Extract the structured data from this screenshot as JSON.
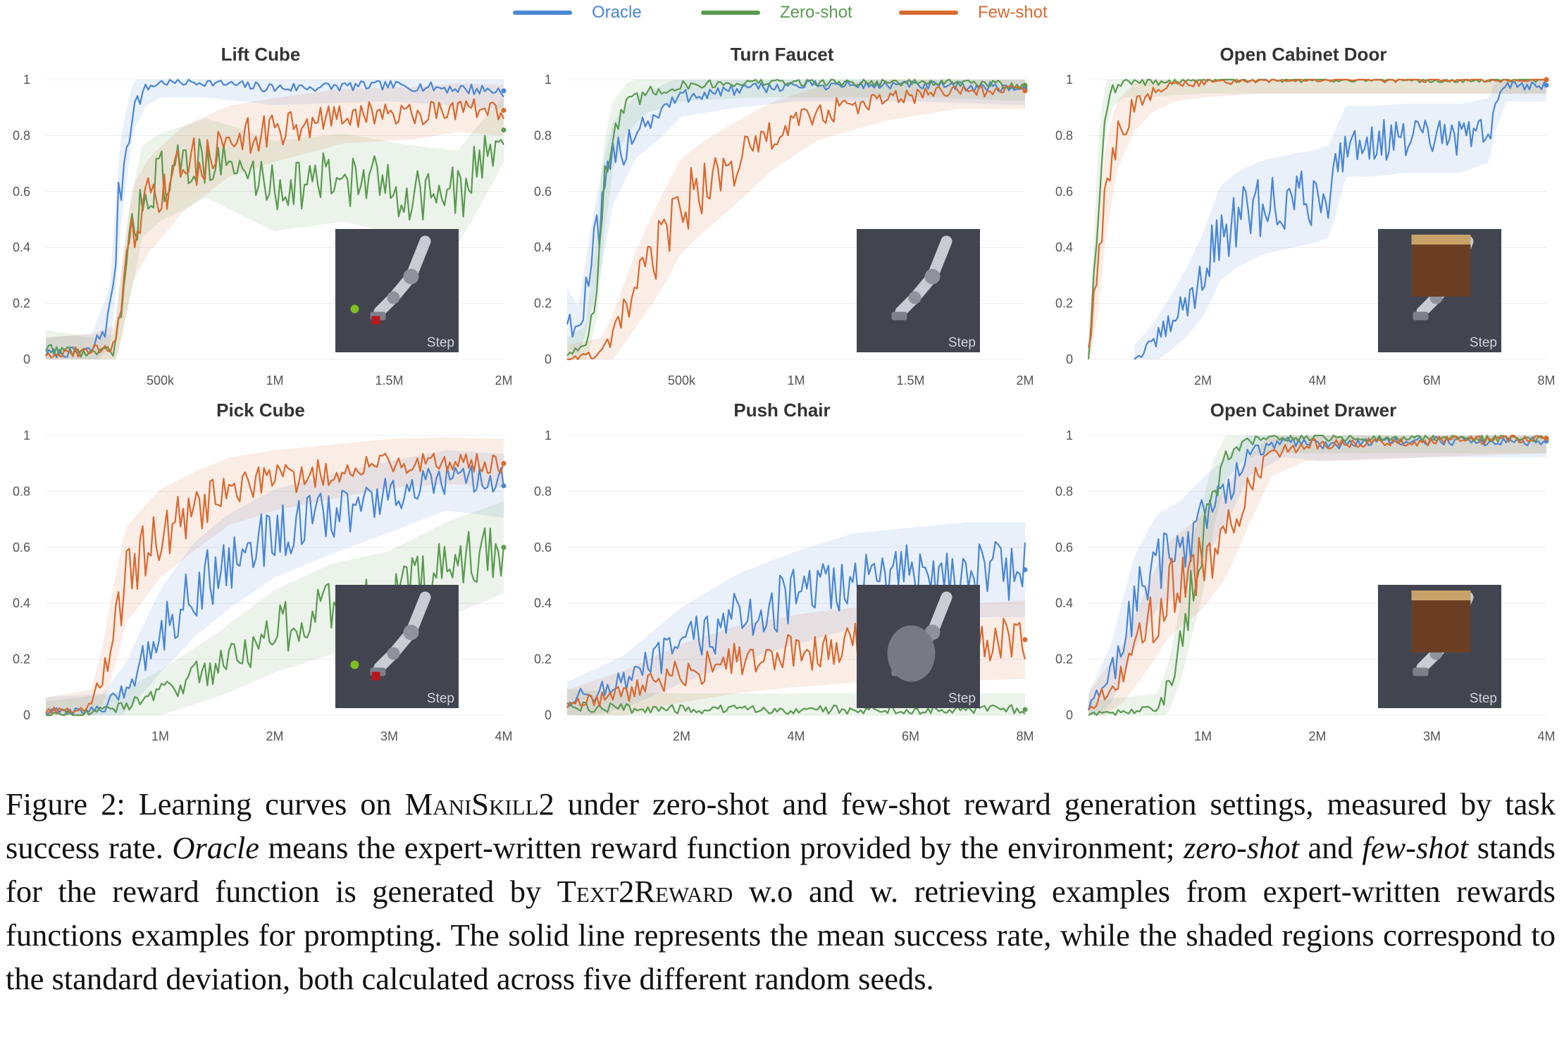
{
  "legend": [
    {
      "key": "oracle",
      "label": "Oracle",
      "color": "#4a86d4"
    },
    {
      "key": "zero",
      "label": "Zero-shot",
      "color": "#5a9a50"
    },
    {
      "key": "few",
      "label": "Few-shot",
      "color": "#d9692f"
    }
  ],
  "chart_data": [
    {
      "type": "line",
      "title": "Lift Cube",
      "xlim": [
        0,
        2000000
      ],
      "ylim": [
        0,
        1
      ],
      "x_ticks": [
        500000,
        1000000,
        1500000,
        2000000
      ],
      "x_tick_labels": [
        "500k",
        "1M",
        "1.5M",
        "2M"
      ],
      "y_ticks": [
        0,
        0.2,
        0.4,
        0.6,
        0.8,
        1
      ],
      "y_tick_labels": [
        "0",
        "0.2",
        "0.4",
        "0.6",
        "0.8",
        "1"
      ],
      "step_label": "Step",
      "series": [
        {
          "name": "Oracle",
          "x": [
            0,
            200000,
            280000,
            330000,
            380000,
            440000,
            500000,
            700000,
            1000000,
            1500000,
            2000000
          ],
          "y": [
            0.02,
            0.03,
            0.15,
            0.65,
            0.9,
            0.97,
            0.99,
            0.99,
            0.97,
            0.98,
            0.96
          ]
        },
        {
          "name": "Zero-shot",
          "x": [
            0,
            200000,
            300000,
            360000,
            420000,
            500000,
            700000,
            1000000,
            1300000,
            1600000,
            1800000,
            2000000
          ],
          "y": [
            0.04,
            0.02,
            0.03,
            0.35,
            0.6,
            0.65,
            0.72,
            0.62,
            0.65,
            0.6,
            0.58,
            0.82
          ]
        },
        {
          "name": "Few-shot",
          "x": [
            0,
            200000,
            300000,
            380000,
            450000,
            600000,
            800000,
            1000000,
            1300000,
            1600000,
            1800000,
            2000000
          ],
          "y": [
            0.02,
            0.03,
            0.05,
            0.45,
            0.55,
            0.68,
            0.78,
            0.82,
            0.87,
            0.88,
            0.9,
            0.89
          ]
        }
      ]
    },
    {
      "type": "line",
      "title": "Turn Faucet",
      "xlim": [
        0,
        2000000
      ],
      "ylim": [
        0,
        1
      ],
      "x_ticks": [
        500000,
        1000000,
        1500000,
        2000000
      ],
      "x_tick_labels": [
        "500k",
        "1M",
        "1.5M",
        "2M"
      ],
      "y_ticks": [
        0,
        0.2,
        0.4,
        0.6,
        0.8,
        1
      ],
      "y_tick_labels": [
        "0",
        "0.2",
        "0.4",
        "0.6",
        "0.8",
        "1"
      ],
      "step_label": "Step",
      "series": [
        {
          "name": "Oracle",
          "x": [
            0,
            50000,
            150000,
            200000,
            300000,
            400000,
            500000,
            700000,
            1000000,
            1500000,
            2000000
          ],
          "y": [
            0.15,
            0.1,
            0.5,
            0.7,
            0.83,
            0.88,
            0.94,
            0.96,
            0.98,
            0.98,
            0.97
          ]
        },
        {
          "name": "Zero-shot",
          "x": [
            0,
            80000,
            130000,
            160000,
            200000,
            260000,
            350000,
            500000,
            800000,
            1200000,
            1600000,
            2000000
          ],
          "y": [
            0.02,
            0.05,
            0.3,
            0.6,
            0.8,
            0.9,
            0.95,
            0.98,
            0.99,
            0.99,
            0.99,
            0.98
          ]
        },
        {
          "name": "Few-shot",
          "x": [
            0,
            150000,
            200000,
            300000,
            400000,
            500000,
            600000,
            700000,
            800000,
            900000,
            1100000,
            1400000,
            1700000,
            2000000
          ],
          "y": [
            0,
            0.02,
            0.08,
            0.25,
            0.4,
            0.55,
            0.62,
            0.68,
            0.74,
            0.8,
            0.88,
            0.93,
            0.96,
            0.96
          ]
        }
      ]
    },
    {
      "type": "line",
      "title": "Open Cabinet Door",
      "xlim": [
        0,
        8000000
      ],
      "ylim": [
        0,
        1
      ],
      "x_ticks": [
        2000000,
        4000000,
        6000000,
        8000000
      ],
      "x_tick_labels": [
        "2M",
        "4M",
        "6M",
        "8M"
      ],
      "y_ticks": [
        0,
        0.2,
        0.4,
        0.6,
        0.8,
        1
      ],
      "y_tick_labels": [
        "0",
        "0.2",
        "0.4",
        "0.6",
        "0.8",
        "1"
      ],
      "step_label": "Step",
      "series": [
        {
          "name": "Oracle",
          "x": [
            800000,
            1100000,
            1400000,
            1700000,
            2000000,
            2300000,
            2600000,
            3000000,
            3400000,
            3900000,
            4200000,
            4500000,
            5000000,
            5500000,
            6000000,
            6500000,
            7000000,
            7100000,
            7300000,
            8000000
          ],
          "y": [
            0,
            0.05,
            0.12,
            0.2,
            0.3,
            0.45,
            0.5,
            0.54,
            0.56,
            0.58,
            0.6,
            0.78,
            0.78,
            0.79,
            0.79,
            0.79,
            0.82,
            0.9,
            0.98,
            0.98
          ]
        },
        {
          "name": "Zero-shot",
          "x": [
            0,
            100000,
            200000,
            300000,
            400000,
            600000,
            1000000,
            2000000,
            4000000,
            6000000,
            8000000
          ],
          "y": [
            0,
            0.3,
            0.7,
            0.9,
            0.96,
            0.99,
            0.99,
            1,
            1,
            1,
            1
          ]
        },
        {
          "name": "Few-shot",
          "x": [
            0,
            100000,
            300000,
            500000,
            800000,
            1100000,
            1500000,
            2000000,
            3000000,
            4000000,
            6000000,
            8000000
          ],
          "y": [
            0.05,
            0.2,
            0.6,
            0.8,
            0.9,
            0.95,
            0.98,
            0.99,
            1,
            1,
            1,
            1
          ]
        }
      ]
    },
    {
      "type": "line",
      "title": "Pick Cube",
      "xlim": [
        0,
        4000000
      ],
      "ylim": [
        0,
        1
      ],
      "x_ticks": [
        1000000,
        2000000,
        3000000,
        4000000
      ],
      "x_tick_labels": [
        "1M",
        "2M",
        "3M",
        "4M"
      ],
      "y_ticks": [
        0,
        0.2,
        0.4,
        0.6,
        0.8,
        1
      ],
      "y_tick_labels": [
        "0",
        "0.2",
        "0.4",
        "0.6",
        "0.8",
        "1"
      ],
      "step_label": "Step",
      "series": [
        {
          "name": "Oracle",
          "x": [
            0,
            500000,
            700000,
            1000000,
            1300000,
            1600000,
            2000000,
            2500000,
            3000000,
            3500000,
            4000000
          ],
          "y": [
            0.01,
            0.02,
            0.1,
            0.3,
            0.45,
            0.55,
            0.65,
            0.72,
            0.78,
            0.84,
            0.82
          ]
        },
        {
          "name": "Zero-shot",
          "x": [
            0,
            600000,
            1000000,
            1500000,
            2000000,
            2500000,
            3000000,
            3500000,
            4000000
          ],
          "y": [
            0,
            0.02,
            0.08,
            0.18,
            0.3,
            0.38,
            0.42,
            0.52,
            0.6
          ]
        },
        {
          "name": "Few-shot",
          "x": [
            0,
            400000,
            500000,
            700000,
            1000000,
            1300000,
            1600000,
            2000000,
            2500000,
            3000000,
            3500000,
            4000000
          ],
          "y": [
            0.01,
            0.03,
            0.15,
            0.5,
            0.65,
            0.73,
            0.8,
            0.84,
            0.87,
            0.9,
            0.91,
            0.9
          ]
        }
      ]
    },
    {
      "type": "line",
      "title": "Push Chair",
      "xlim": [
        0,
        8000000
      ],
      "ylim": [
        0,
        1
      ],
      "x_ticks": [
        2000000,
        4000000,
        6000000,
        8000000
      ],
      "x_tick_labels": [
        "2M",
        "4M",
        "6M",
        "8M"
      ],
      "y_ticks": [
        0,
        0.2,
        0.4,
        0.6,
        0.8,
        1
      ],
      "y_tick_labels": [
        "0",
        "0.2",
        "0.4",
        "0.6",
        "0.8",
        "1"
      ],
      "step_label": "Step",
      "series": [
        {
          "name": "Oracle",
          "x": [
            0,
            1000000,
            2000000,
            3000000,
            4000000,
            5000000,
            6000000,
            7000000,
            8000000
          ],
          "y": [
            0.05,
            0.12,
            0.25,
            0.35,
            0.42,
            0.48,
            0.5,
            0.52,
            0.52
          ]
        },
        {
          "name": "Zero-shot",
          "x": [
            0,
            2000000,
            4000000,
            6000000,
            8000000
          ],
          "y": [
            0.03,
            0.02,
            0.02,
            0.02,
            0.02
          ]
        },
        {
          "name": "Few-shot",
          "x": [
            0,
            1000000,
            2000000,
            3000000,
            4000000,
            5000000,
            6000000,
            7000000,
            8000000
          ],
          "y": [
            0.03,
            0.08,
            0.15,
            0.2,
            0.23,
            0.25,
            0.25,
            0.26,
            0.27
          ]
        }
      ]
    },
    {
      "type": "line",
      "title": "Open Cabinet Drawer",
      "xlim": [
        0,
        4000000
      ],
      "ylim": [
        0,
        1
      ],
      "x_ticks": [
        1000000,
        2000000,
        3000000,
        4000000
      ],
      "x_tick_labels": [
        "1M",
        "2M",
        "3M",
        "4M"
      ],
      "y_ticks": [
        0,
        0.2,
        0.4,
        0.6,
        0.8,
        1
      ],
      "y_tick_labels": [
        "0",
        "0.2",
        "0.4",
        "0.6",
        "0.8",
        "1"
      ],
      "step_label": "Step",
      "series": [
        {
          "name": "Oracle",
          "x": [
            0,
            200000,
            400000,
            600000,
            800000,
            1000000,
            1200000,
            1400000,
            1700000,
            2000000,
            3000000,
            4000000
          ],
          "y": [
            0.02,
            0.15,
            0.4,
            0.55,
            0.6,
            0.7,
            0.8,
            0.93,
            0.98,
            0.97,
            0.98,
            0.98
          ]
        },
        {
          "name": "Zero-shot",
          "x": [
            0,
            600000,
            700000,
            800000,
            900000,
            1000000,
            1100000,
            1200000,
            1350000,
            1500000,
            2000000,
            4000000
          ],
          "y": [
            0,
            0.02,
            0.1,
            0.25,
            0.45,
            0.6,
            0.8,
            0.92,
            0.97,
            0.99,
            0.99,
            0.99
          ]
        },
        {
          "name": "Few-shot",
          "x": [
            0,
            300000,
            500000,
            700000,
            1000000,
            1200000,
            1400000,
            1600000,
            1900000,
            2200000,
            3000000,
            4000000
          ],
          "y": [
            0.02,
            0.15,
            0.3,
            0.45,
            0.55,
            0.65,
            0.8,
            0.93,
            0.97,
            0.97,
            0.98,
            0.99
          ]
        }
      ]
    }
  ],
  "caption": {
    "prefix": "Figure 2:  Learning curves on ",
    "maniskill": "ManiSkill2",
    "part1": " under zero-shot and few-shot reward generation settings, measured by task success rate. ",
    "oracle": "Oracle",
    "part2": " means the expert-written reward function provided by the environment; ",
    "zero": "zero-shot",
    "and": " and ",
    "few": "few-shot",
    "part3": " stands for the reward function is generated by ",
    "text2reward": "Text2Reward",
    "part4": " w.o and w. retrieving examples from expert-written rewards functions examples for prompting. The solid line represents the mean success rate, while the shaded regions correspond to the standard deviation, both calculated across five different random seeds."
  }
}
